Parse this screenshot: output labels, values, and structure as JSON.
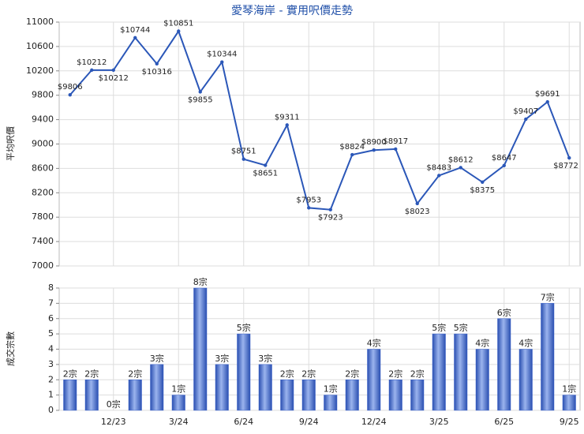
{
  "chart_data": [
    {
      "type": "line",
      "title": "愛琴海岸 - 實用呎價走勢",
      "y_label": "平均呎價",
      "color": "#2b57b8",
      "values": [
        9806,
        10212,
        10212,
        10744,
        10316,
        10851,
        9855,
        10344,
        8751,
        8651,
        9311,
        7953,
        7923,
        8824,
        8900,
        8917,
        8023,
        8483,
        8612,
        8375,
        8647,
        9407,
        9691,
        8772
      ],
      "value_labels": [
        "$9806",
        "$10212",
        "$10212",
        "$10744",
        "$10316",
        "$10851",
        "$9855",
        "$10344",
        "$8751",
        "$8651",
        "$9311",
        "$7953",
        "$7923",
        "$8824",
        "$8900",
        "$8917",
        "$8023",
        "$8483",
        "$8612",
        "$8375",
        "$8647",
        "$9407",
        "$9691",
        "$8772"
      ],
      "ylim": [
        7000,
        11000
      ],
      "yticks": [
        7000,
        7400,
        7800,
        8200,
        8600,
        9000,
        9400,
        9800,
        10200,
        10600,
        11000
      ],
      "grid": true
    },
    {
      "type": "bar",
      "y_label": "成交宗數",
      "color": "#3a62cc",
      "categories": [
        null,
        null,
        "12/23",
        null,
        null,
        "3/24",
        null,
        null,
        "6/24",
        null,
        null,
        "9/24",
        null,
        null,
        "12/24",
        null,
        null,
        "3/25",
        null,
        null,
        "6/25",
        null,
        null,
        "9/25"
      ],
      "values": [
        2,
        2,
        0,
        2,
        3,
        1,
        8,
        3,
        5,
        3,
        2,
        2,
        1,
        2,
        4,
        2,
        2,
        5,
        5,
        4,
        6,
        4,
        7,
        1
      ],
      "value_labels": [
        "2宗",
        "2宗",
        "0宗",
        "2宗",
        "3宗",
        "1宗",
        "8宗",
        "3宗",
        "5宗",
        "3宗",
        "2宗",
        "2宗",
        "1宗",
        "2宗",
        "4宗",
        "2宗",
        "2宗",
        "5宗",
        "5宗",
        "4宗",
        "6宗",
        "4宗",
        "7宗",
        "1宗"
      ],
      "ylim": [
        0,
        8
      ],
      "yticks": [
        0,
        1,
        2,
        3,
        4,
        5,
        6,
        7,
        8
      ],
      "grid": true
    }
  ]
}
